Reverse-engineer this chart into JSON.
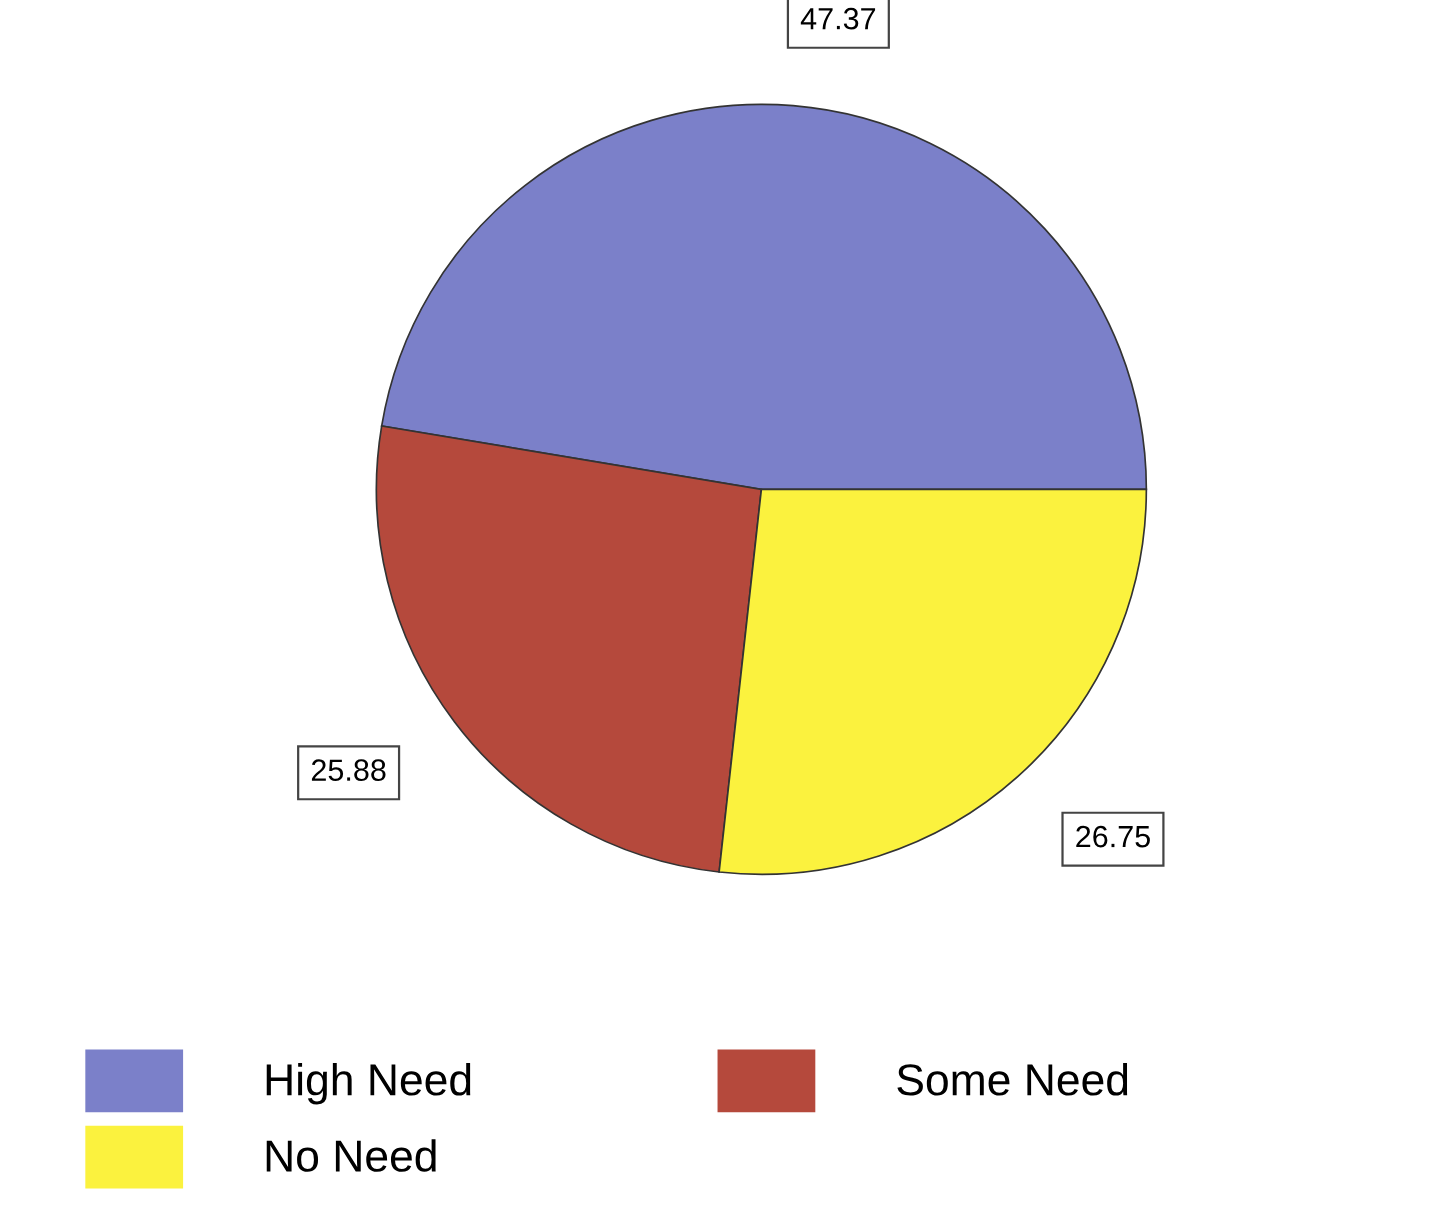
{
  "chart_data": {
    "type": "pie",
    "categories": [
      "High Need",
      "Some Need",
      "No Need"
    ],
    "values": [
      47.37,
      25.88,
      26.75
    ],
    "colors": [
      "#7b80c9",
      "#b5493c",
      "#fbf23e"
    ],
    "data_labels": true,
    "legend": "bottom"
  }
}
